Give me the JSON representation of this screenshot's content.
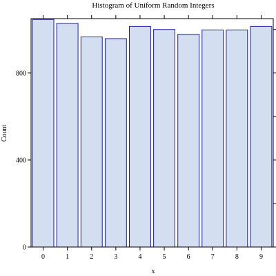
{
  "chart_data": {
    "type": "bar",
    "title": "Histogram of Uniform Random Integers",
    "xlabel": "x",
    "ylabel": "Count",
    "categories": [
      "0",
      "1",
      "2",
      "3",
      "4",
      "5",
      "6",
      "7",
      "8",
      "9"
    ],
    "values": [
      1046,
      1028,
      966,
      958,
      1014,
      1000,
      978,
      998,
      998,
      1014
    ],
    "ylim": [
      0,
      1050
    ],
    "yticks": [
      0,
      400,
      800
    ],
    "yticks_labeled": [
      "0",
      "400",
      "800"
    ],
    "yticks_unlabeled": [
      200,
      600,
      1000
    ],
    "grid": false,
    "legend": "none",
    "colors": {
      "bar_fill": "#d3dff0",
      "bar_stroke": "#1a1aa6",
      "frame": "#000000"
    }
  }
}
